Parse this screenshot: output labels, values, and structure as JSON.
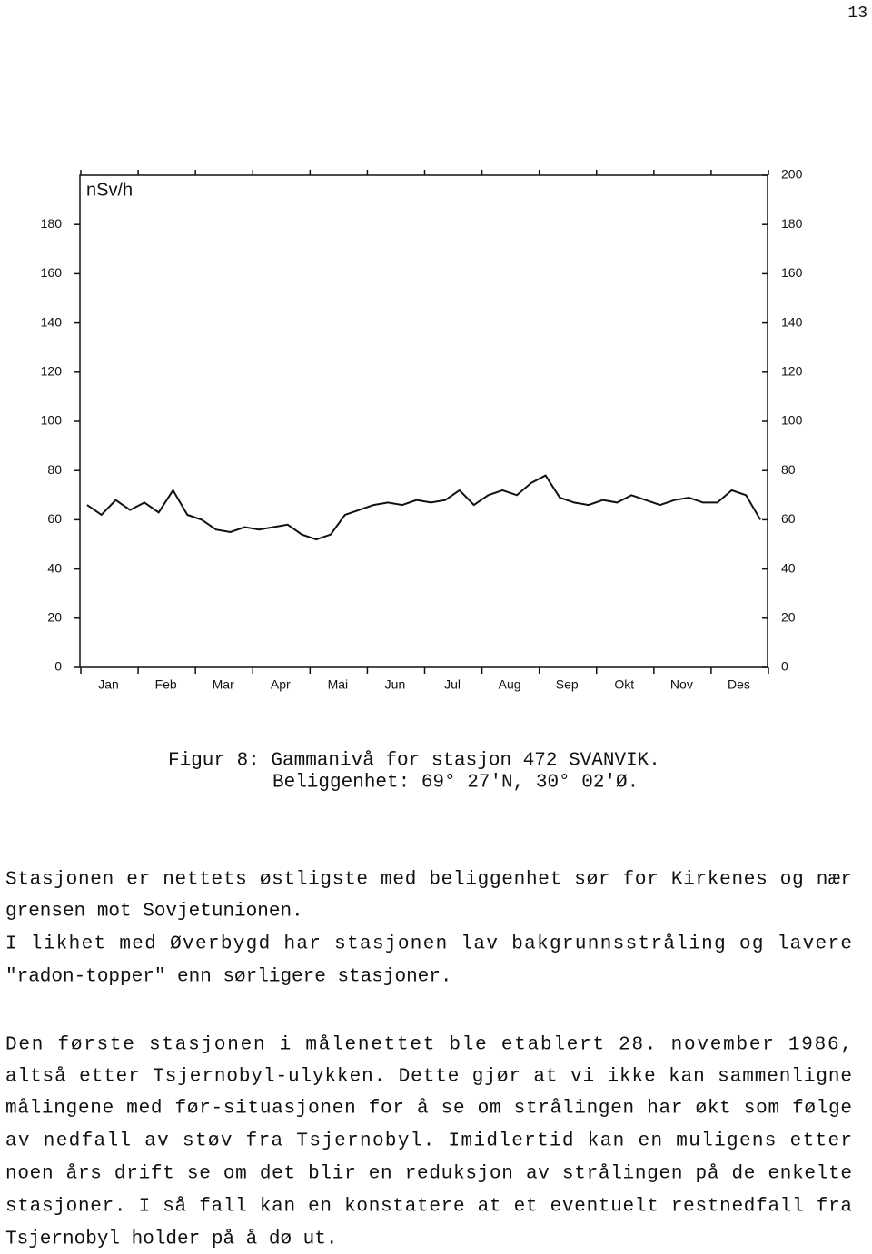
{
  "page_number": "13",
  "chart_data": {
    "type": "line",
    "y_label": "nSv/h",
    "categories": [
      null,
      null,
      "Jan",
      null,
      null,
      null,
      "Feb",
      null,
      null,
      null,
      "Mar",
      null,
      null,
      null,
      "Apr",
      null,
      null,
      null,
      "Mai",
      null,
      null,
      null,
      "Jun",
      null,
      null,
      null,
      "Jul",
      null,
      null,
      null,
      "Aug",
      null,
      null,
      null,
      "Sep",
      null,
      null,
      null,
      "Okt",
      null,
      null,
      null,
      "Nov",
      null,
      null,
      null,
      "Des",
      null
    ],
    "series": [
      {
        "color": "#111111",
        "values": [
          66,
          62,
          68,
          64,
          67,
          63,
          72,
          62,
          60,
          56,
          55,
          57,
          56,
          57,
          58,
          54,
          52,
          54,
          62,
          64,
          66,
          67,
          66,
          68,
          67,
          68,
          72,
          66,
          70,
          72,
          70,
          75,
          78,
          69,
          67,
          66,
          68,
          67,
          70,
          68,
          66,
          68,
          69,
          67,
          67,
          72,
          70,
          60
        ]
      }
    ],
    "ylim": [
      0,
      200
    ],
    "yticks": [
      0,
      20,
      40,
      60,
      80,
      100,
      120,
      140,
      160,
      180
    ],
    "y2lim": [
      0,
      200
    ],
    "y2ticks": [
      0,
      20,
      40,
      60,
      80,
      100,
      120,
      140,
      160,
      180,
      200
    ]
  },
  "caption": [
    "Figur 8: Gammanivå for stasjon 472 SVANVIK.",
    "Beliggenhet: 69° 27'N, 30° 02'Ø."
  ],
  "paragraphs": [
    [
      "Stasjonen er nettets østligste med beliggenhet sør for Kirkenes og nær",
      "grensen mot Sovjetunionen.",
      "I likhet med Øverbygd har stasjonen lav bakgrunnsstråling og lavere",
      "\"radon-topper\" enn sørligere stasjoner."
    ],
    [
      "Den første stasjonen i målenettet ble etablert 28. november 1986,",
      "altså etter Tsjernobyl-ulykken. Dette gjør at vi ikke kan sammenligne",
      "målingene med før-situasjonen for å se om strålingen har økt som følge",
      "av nedfall av støv fra Tsjernobyl. Imidlertid kan en muligens etter",
      "noen års drift se om det blir en reduksjon av strålingen på de enkelte",
      "stasjoner. I så fall kan en konstatere at et eventuelt restnedfall fra",
      "Tsjernobyl holder på å dø ut."
    ]
  ]
}
